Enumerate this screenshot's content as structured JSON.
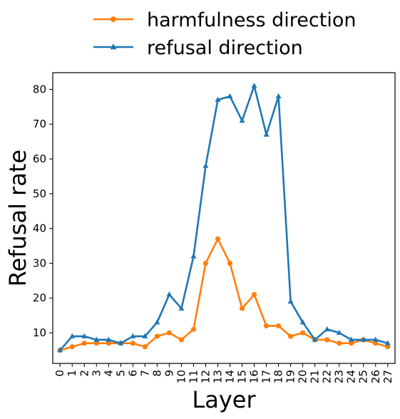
{
  "chart_data": {
    "type": "line",
    "xlabel": "Layer",
    "ylabel": "Refusal rate",
    "x": [
      0,
      1,
      2,
      3,
      4,
      5,
      6,
      7,
      8,
      9,
      10,
      11,
      12,
      13,
      14,
      15,
      16,
      17,
      18,
      19,
      20,
      21,
      22,
      23,
      24,
      25,
      26,
      27
    ],
    "ylim": [
      1.2,
      84.8
    ],
    "yticks": [
      10,
      20,
      30,
      40,
      50,
      60,
      70,
      80
    ],
    "grid": false,
    "legend_position": "top-center, outside plot",
    "series": [
      {
        "name": "harmfulness direction",
        "color": "#ff7f0e",
        "marker": "circle",
        "values": [
          5,
          6,
          7,
          7,
          7,
          7,
          7,
          6,
          9,
          10,
          8,
          11,
          30,
          37,
          30,
          17,
          21,
          12,
          12,
          9,
          10,
          8,
          8,
          7,
          7,
          8,
          7,
          6
        ]
      },
      {
        "name": "refusal direction",
        "color": "#1f77b4",
        "marker": "triangle",
        "values": [
          5,
          9,
          9,
          8,
          8,
          7,
          9,
          9,
          13,
          21,
          17,
          32,
          58,
          77,
          78,
          71,
          81,
          67,
          78,
          19,
          13,
          8,
          11,
          10,
          8,
          8,
          8,
          7
        ]
      }
    ]
  }
}
